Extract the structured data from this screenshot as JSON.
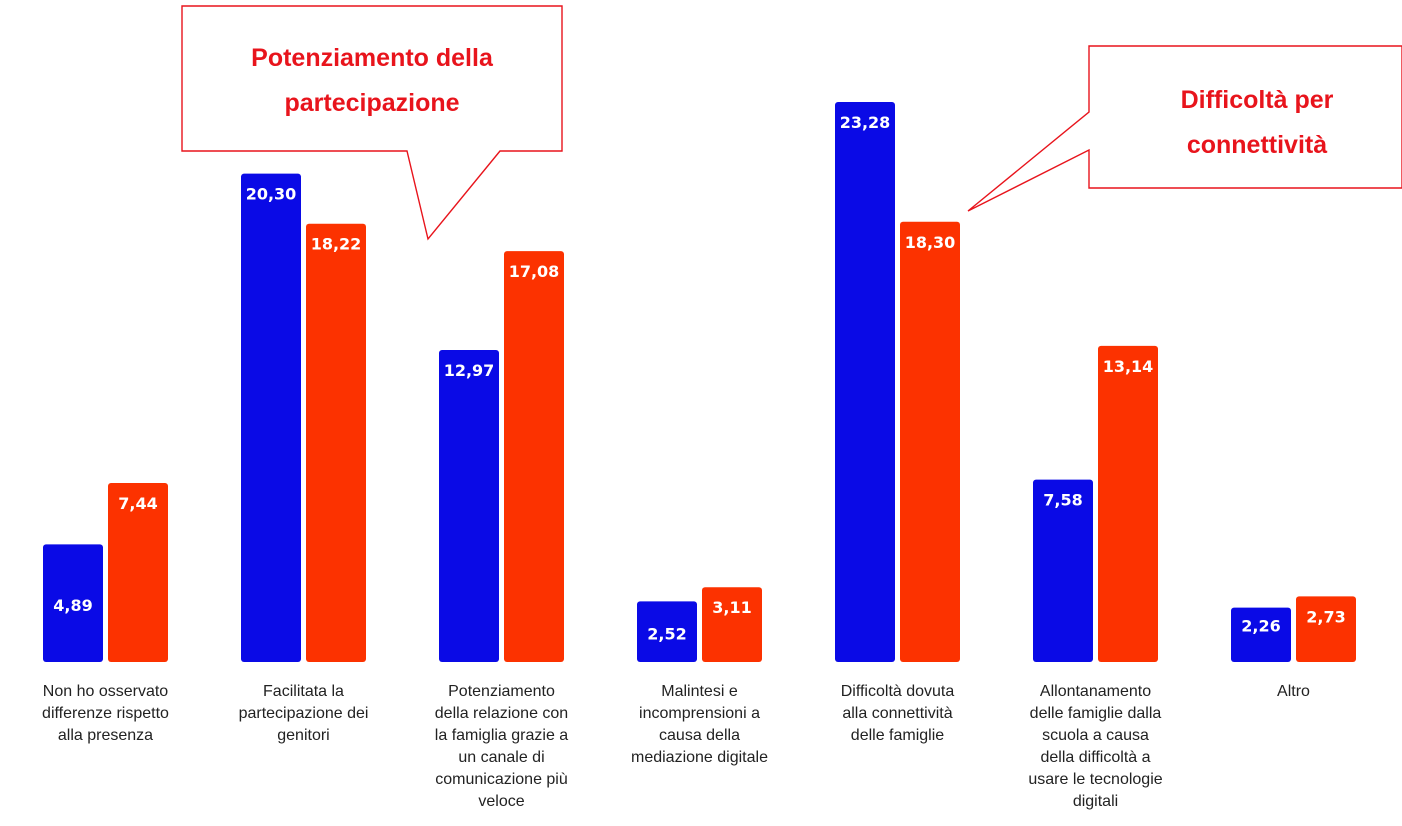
{
  "chart_data": {
    "type": "bar",
    "categories": [
      [
        "Non ho osservato",
        "differenze rispetto",
        "alla presenza"
      ],
      [
        "Facilitata la",
        "partecipazione dei",
        "genitori"
      ],
      [
        "Potenziamento",
        "della relazione con",
        "la famiglia grazie a",
        "un canale di",
        "comunicazione più",
        "veloce"
      ],
      [
        "Malintesi e",
        "incomprensioni a",
        "causa della",
        "mediazione digitale"
      ],
      [
        "Difficoltà dovuta",
        "alla connettività",
        "delle famiglie"
      ],
      [
        "Allontanamento",
        "delle famiglie dalla",
        "scuola a causa",
        "della difficoltà a",
        "usare le tecnologie",
        "digitali"
      ],
      [
        "Altro"
      ]
    ],
    "series": [
      {
        "values": [
          4.89,
          20.3,
          12.97,
          2.52,
          23.28,
          7.58,
          2.26
        ],
        "labels": [
          "4,89",
          "20,30",
          "12,97",
          "2,52",
          "23,28",
          "7,58",
          "2,26"
        ],
        "color": "#0a0ae6"
      },
      {
        "values": [
          7.44,
          18.22,
          17.08,
          3.11,
          18.3,
          13.14,
          2.73
        ],
        "labels": [
          "7,44",
          "18,22",
          "17,08",
          "3,11",
          "18,30",
          "13,14",
          "2,73"
        ],
        "color": "#fc3200"
      }
    ],
    "ylim": [
      0,
      23.28
    ],
    "grid": false,
    "legend": "none"
  },
  "callouts": [
    {
      "lines": [
        "Potenziamento della",
        "partecipazione"
      ],
      "color": "#e8141c"
    },
    {
      "lines": [
        "Difficoltà per",
        "connettività"
      ],
      "color": "#e8141c"
    }
  ]
}
